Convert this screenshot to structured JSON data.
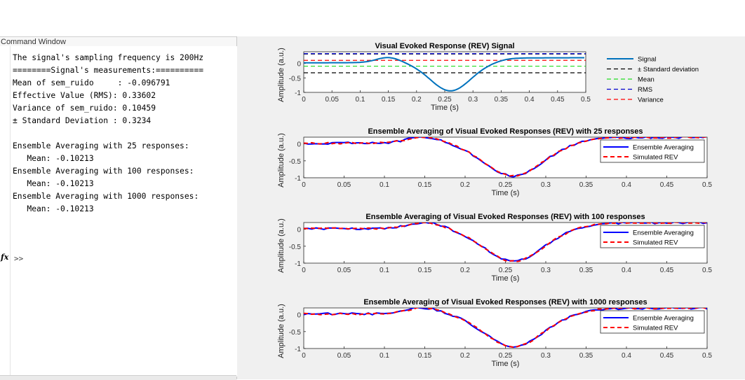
{
  "command_window": {
    "title": "Command Window",
    "lines": [
      "The signal's sampling frequency is 200Hz",
      "========Signal's measurements:==========",
      "Mean of sem_ruido     : -0.096791",
      "Effective Value (RMS): 0.33602",
      "Variance of sem_ruido: 0.10459",
      "± Standard Deviation : 0.3234",
      "",
      "Ensemble Averaging with 25 responses:",
      "   Mean: -0.10213",
      "Ensemble Averaging with 100 responses:",
      "   Mean: -0.10213",
      "Ensemble Averaging with 1000 responses:",
      "   Mean: -0.10213"
    ],
    "fx_label": "fx",
    "prompt": ">>"
  },
  "colors": {
    "signal": "#0072BD",
    "std": "#000000",
    "mean": "#22dd22",
    "rms": "#0000cc",
    "variance": "#ff0000",
    "ensemble": "#0000ff",
    "simulated": "#ff0000"
  },
  "chart_data": [
    {
      "type": "line",
      "title": "Visual Evoked Response (REV) Signal",
      "xlabel": "Time (s)",
      "ylabel": "Amplitude (a.u.)",
      "xlim": [
        0,
        0.5
      ],
      "ylim": [
        -1,
        0.4
      ],
      "xticks": [
        "0",
        "0.05",
        "0.1",
        "0.15",
        "0.2",
        "0.25",
        "0.3",
        "0.35",
        "0.4",
        "0.45",
        "0.5"
      ],
      "yticks": [
        "0",
        "-0.5",
        "-1"
      ],
      "legend_position": "outside-right",
      "series": [
        {
          "name": "Signal",
          "style": "solid",
          "color": "#0072BD",
          "x": [
            0,
            0.05,
            0.1,
            0.13,
            0.15,
            0.18,
            0.2,
            0.22,
            0.25,
            0.27,
            0.3,
            0.32,
            0.34,
            0.36,
            0.4,
            0.45,
            0.5
          ],
          "y": [
            0.02,
            0.05,
            0.08,
            0.13,
            0.15,
            0.05,
            -0.15,
            -0.4,
            -0.7,
            -0.76,
            -0.62,
            -0.35,
            -0.05,
            0.15,
            0.15,
            0.15,
            0.15
          ]
        },
        {
          "name": "± Standard deviation",
          "style": "dashed",
          "color": "#000000",
          "x": [
            0,
            0.5
          ],
          "y": [
            0.3234,
            0.3234
          ],
          "y2": -0.3234
        },
        {
          "name": "Mean",
          "style": "dashed",
          "color": "#22dd22",
          "x": [
            0,
            0.5
          ],
          "y": [
            -0.096791,
            -0.096791
          ]
        },
        {
          "name": "RMS",
          "style": "dashed",
          "color": "#0000cc",
          "x": [
            0,
            0.5
          ],
          "y": [
            0.33602,
            0.33602
          ]
        },
        {
          "name": "Variance",
          "style": "dashed",
          "color": "#ff0000",
          "x": [
            0,
            0.5
          ],
          "y": [
            0.10459,
            0.10459
          ]
        }
      ]
    },
    {
      "type": "line",
      "title": "Ensemble Averaging of Visual Evoked Responses (REV) with 25 responses",
      "xlabel": "Time (s)",
      "ylabel": "Amplitude (a.u.)",
      "xlim": [
        0,
        0.5
      ],
      "ylim": [
        -1,
        0.2
      ],
      "xticks": [
        "0",
        "0.05",
        "0.1",
        "0.15",
        "0.2",
        "0.25",
        "0.3",
        "0.35",
        "0.4",
        "0.45",
        "0.5"
      ],
      "yticks": [
        "0",
        "-0.5",
        "-1"
      ],
      "legend_position": "top-right",
      "series": [
        {
          "name": "Ensemble Averaging",
          "style": "solid",
          "color": "#0000ff"
        },
        {
          "name": "Simulated REV",
          "style": "dashed",
          "color": "#ff0000"
        }
      ]
    },
    {
      "type": "line",
      "title": "Ensemble Averaging of Visual Evoked Responses (REV) with 100 responses",
      "xlabel": "Time (s)",
      "ylabel": "Amplitude (a.u.)",
      "xlim": [
        0,
        0.5
      ],
      "ylim": [
        -1,
        0.2
      ],
      "xticks": [
        "0",
        "0.05",
        "0.1",
        "0.15",
        "0.2",
        "0.25",
        "0.3",
        "0.35",
        "0.4",
        "0.45",
        "0.5"
      ],
      "yticks": [
        "0",
        "-0.5",
        "-1"
      ],
      "legend_position": "top-right",
      "series": [
        {
          "name": "Ensemble Averaging",
          "style": "solid",
          "color": "#0000ff"
        },
        {
          "name": "Simulated REV",
          "style": "dashed",
          "color": "#ff0000"
        }
      ]
    },
    {
      "type": "line",
      "title": "Ensemble Averaging of Visual Evoked Responses (REV) with 1000 responses",
      "xlabel": "Time (s)",
      "ylabel": "Amplitude (a.u.)",
      "xlim": [
        0,
        0.5
      ],
      "ylim": [
        -1,
        0.2
      ],
      "xticks": [
        "0",
        "0.05",
        "0.1",
        "0.15",
        "0.2",
        "0.25",
        "0.3",
        "0.35",
        "0.4",
        "0.45",
        "0.5"
      ],
      "yticks": [
        "0",
        "-0.5",
        "-1"
      ],
      "legend_position": "top-right",
      "series": [
        {
          "name": "Ensemble Averaging",
          "style": "solid",
          "color": "#0000ff"
        },
        {
          "name": "Simulated REV",
          "style": "dashed",
          "color": "#ff0000"
        }
      ]
    }
  ]
}
